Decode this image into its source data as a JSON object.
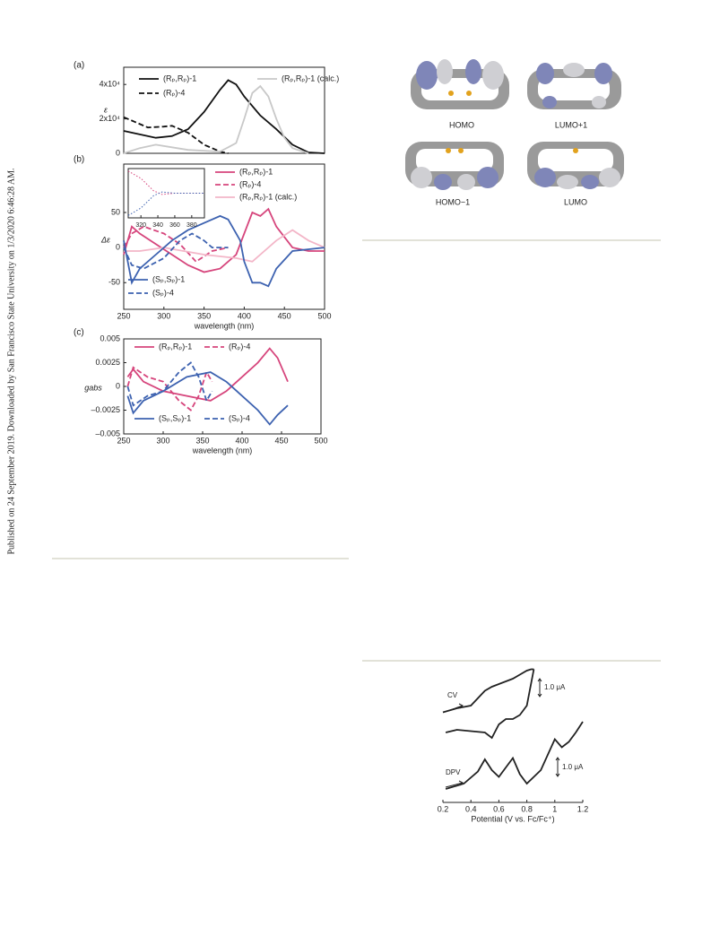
{
  "sidebar": "Published on 24 September 2019. Downloaded by San Francisco State University on 1/3/2020 6:46:28 AM.",
  "orbitals": {
    "labels": [
      "HOMO",
      "LUMO+1",
      "HOMO−1",
      "LUMO"
    ]
  },
  "chart_data": [
    {
      "type": "line",
      "label": "(a)",
      "ylabel": "ε",
      "xlim": [
        250,
        500
      ],
      "ylim": [
        0,
        50000
      ],
      "yticks": [
        0,
        {
          "value": 20000,
          "label": "2x10⁴"
        },
        {
          "value": 40000,
          "label": "4x10⁴"
        }
      ],
      "series": [
        {
          "name": "(Rₚ,Rₚ)-1",
          "color": "#111111",
          "style": "solid",
          "x": [
            250,
            270,
            290,
            310,
            330,
            350,
            370,
            380,
            390,
            400,
            420,
            440,
            460,
            480,
            500
          ],
          "values": [
            13000,
            11000,
            9000,
            10000,
            14000,
            24000,
            37000,
            42500,
            40000,
            33000,
            22000,
            14000,
            5000,
            500,
            0
          ]
        },
        {
          "name": "(Rₚ)-4",
          "color": "#111111",
          "style": "dashed",
          "x": [
            250,
            260,
            280,
            300,
            310,
            330,
            350,
            370,
            380
          ],
          "values": [
            21000,
            19000,
            15000,
            15500,
            16000,
            12000,
            5000,
            1000,
            0
          ]
        },
        {
          "name": "(Rₚ,Rₚ)-1 (calc.)",
          "color": "#c8c8c8",
          "style": "solid",
          "x": [
            250,
            270,
            290,
            310,
            330,
            350,
            370,
            390,
            400,
            410,
            420,
            430,
            440,
            450,
            460,
            480
          ],
          "values": [
            0,
            3000,
            5000,
            3500,
            2000,
            1500,
            1000,
            6000,
            20000,
            35000,
            39000,
            33000,
            20000,
            9000,
            3000,
            0
          ]
        }
      ]
    },
    {
      "type": "line",
      "label": "(b)",
      "ylabel": "Δε",
      "xlabel": "wavelength (nm)",
      "xlim": [
        250,
        500
      ],
      "ylim": [
        -88,
        119
      ],
      "xticks": [
        250,
        300,
        350,
        400,
        450,
        500
      ],
      "yticks": [
        -50,
        0,
        50
      ],
      "series": [
        {
          "name": "(Rₚ,Rₚ)-1",
          "color": "#d6457c",
          "style": "solid",
          "x": [
            250,
            260,
            270,
            290,
            310,
            330,
            350,
            370,
            390,
            400,
            410,
            420,
            430,
            440,
            460,
            480,
            500
          ],
          "values": [
            -10,
            30,
            20,
            5,
            -10,
            -25,
            -35,
            -30,
            -10,
            20,
            50,
            45,
            55,
            30,
            0,
            -5,
            -5
          ]
        },
        {
          "name": "(Rₚ)-4",
          "color": "#d6457c",
          "style": "dashed",
          "x": [
            250,
            260,
            275,
            300,
            320,
            340,
            360,
            380
          ],
          "values": [
            0,
            20,
            30,
            20,
            5,
            -20,
            -5,
            0
          ]
        },
        {
          "name": "(Rₚ,Rₚ)-1 (calc.)",
          "color": "#f3b6c8",
          "style": "solid",
          "x": [
            250,
            270,
            300,
            350,
            390,
            410,
            420,
            440,
            460,
            480,
            500
          ],
          "values": [
            -5,
            -5,
            0,
            -10,
            -15,
            -20,
            -10,
            10,
            25,
            10,
            0
          ]
        },
        {
          "name": "(Sₚ,Sₚ)-1",
          "color": "#3d62b0",
          "style": "solid",
          "x": [
            250,
            260,
            270,
            290,
            310,
            330,
            350,
            370,
            380,
            395,
            400,
            410,
            420,
            430,
            440,
            460,
            500
          ],
          "values": [
            10,
            -50,
            -30,
            -10,
            10,
            25,
            35,
            45,
            40,
            10,
            -20,
            -50,
            -50,
            -55,
            -30,
            -5,
            0
          ]
        },
        {
          "name": "(Sₚ)-4",
          "color": "#3d62b0",
          "style": "dashed",
          "x": [
            250,
            260,
            275,
            300,
            320,
            335,
            350,
            360,
            380
          ],
          "values": [
            0,
            -25,
            -30,
            -15,
            10,
            20,
            10,
            0,
            0
          ]
        }
      ]
    },
    {
      "type": "line",
      "xlim": [
        305,
        395
      ],
      "ylim": [
        -1,
        1
      ],
      "xticks": [
        320,
        340,
        360,
        380
      ],
      "series": [
        {
          "color": "#d6457c",
          "style": "dotted",
          "x": [
            305,
            320,
            335,
            345,
            360,
            395
          ],
          "values": [
            0.9,
            0.6,
            0.1,
            -0.05,
            0,
            0
          ]
        },
        {
          "color": "#3d62b0",
          "style": "dotted",
          "x": [
            305,
            320,
            335,
            345,
            360,
            395
          ],
          "values": [
            -0.9,
            -0.6,
            -0.1,
            0.05,
            0,
            0
          ]
        }
      ]
    },
    {
      "type": "line",
      "label": "(c)",
      "ylabel": "gabs",
      "xlabel": "wavelength (nm)",
      "xlim": [
        250,
        500
      ],
      "ylim": [
        -0.005,
        0.005
      ],
      "xticks": [
        250,
        300,
        350,
        400,
        450,
        500
      ],
      "yticks": [
        {
          "value": -0.005,
          "label": "–0.005"
        },
        {
          "value": -0.0025,
          "label": "–0.0025"
        },
        0,
        0.0025,
        0.005
      ],
      "series": [
        {
          "name": "(Rₚ,Rₚ)-1",
          "color": "#d6457c",
          "style": "solid",
          "x": [
            255,
            262,
            275,
            300,
            330,
            360,
            380,
            400,
            420,
            435,
            445,
            458
          ],
          "values": [
            0.001,
            0.0018,
            0.0005,
            -0.0005,
            -0.001,
            -0.0015,
            -0.0005,
            0.001,
            0.0025,
            0.004,
            0.003,
            0.0005
          ]
        },
        {
          "name": "(Rₚ)-4",
          "color": "#d6457c",
          "style": "dashed",
          "x": [
            255,
            262,
            280,
            300,
            320,
            335,
            345,
            355,
            362
          ],
          "values": [
            0,
            0.002,
            0.001,
            0.0005,
            -0.0015,
            -0.0025,
            -0.001,
            0.0015,
            0.0005
          ]
        },
        {
          "name": "(Sₚ,Sₚ)-1",
          "color": "#3d62b0",
          "style": "solid",
          "x": [
            255,
            262,
            275,
            300,
            330,
            360,
            380,
            400,
            420,
            435,
            445,
            458
          ],
          "values": [
            -0.001,
            -0.0028,
            -0.0015,
            -0.0005,
            0.001,
            0.0015,
            0.0005,
            -0.001,
            -0.0025,
            -0.004,
            -0.003,
            -0.002
          ]
        },
        {
          "name": "(Sₚ)-4",
          "color": "#3d62b0",
          "style": "dashed",
          "x": [
            255,
            262,
            280,
            300,
            320,
            335,
            345,
            355,
            362
          ],
          "values": [
            0,
            -0.002,
            -0.001,
            -0.0005,
            0.0015,
            0.0025,
            0.001,
            -0.0015,
            -0.0005
          ]
        }
      ]
    },
    {
      "type": "line",
      "xlabel": "Potential (V vs. Fc/Fc⁺)",
      "xlim": [
        0.2,
        1.2
      ],
      "ylim": [
        0,
        100
      ],
      "xticks": [
        0.2,
        0.4,
        0.6,
        0.8,
        1.0,
        1.2
      ],
      "annotations": [
        "CV",
        "DPV",
        "1.0 μA",
        "1.0 μA"
      ],
      "series": [
        {
          "color": "#222222",
          "style": "solid",
          "x": [
            0.2,
            0.3,
            0.4,
            0.5,
            0.55,
            0.6,
            0.65,
            0.7,
            0.75,
            0.8,
            0.83,
            0.85
          ],
          "values": [
            67,
            70,
            72,
            83,
            86,
            88,
            90,
            92,
            95,
            98,
            99,
            99
          ]
        },
        {
          "color": "#222222",
          "style": "solid",
          "x": [
            0.85,
            0.8,
            0.75,
            0.7,
            0.65,
            0.6,
            0.55,
            0.5,
            0.4,
            0.3,
            0.22
          ],
          "values": [
            99,
            72,
            65,
            62,
            62,
            58,
            48,
            52,
            53,
            54,
            52
          ]
        },
        {
          "color": "#222222",
          "style": "solid",
          "x": [
            0.22,
            0.35,
            0.45,
            0.5,
            0.55,
            0.6,
            0.7,
            0.75,
            0.8,
            0.9,
            1.0,
            1.05,
            1.1,
            1.15,
            1.2
          ],
          "values": [
            10,
            14,
            23,
            32,
            24,
            19,
            33,
            21,
            14,
            24,
            47,
            41,
            45,
            52,
            60
          ]
        }
      ]
    }
  ]
}
